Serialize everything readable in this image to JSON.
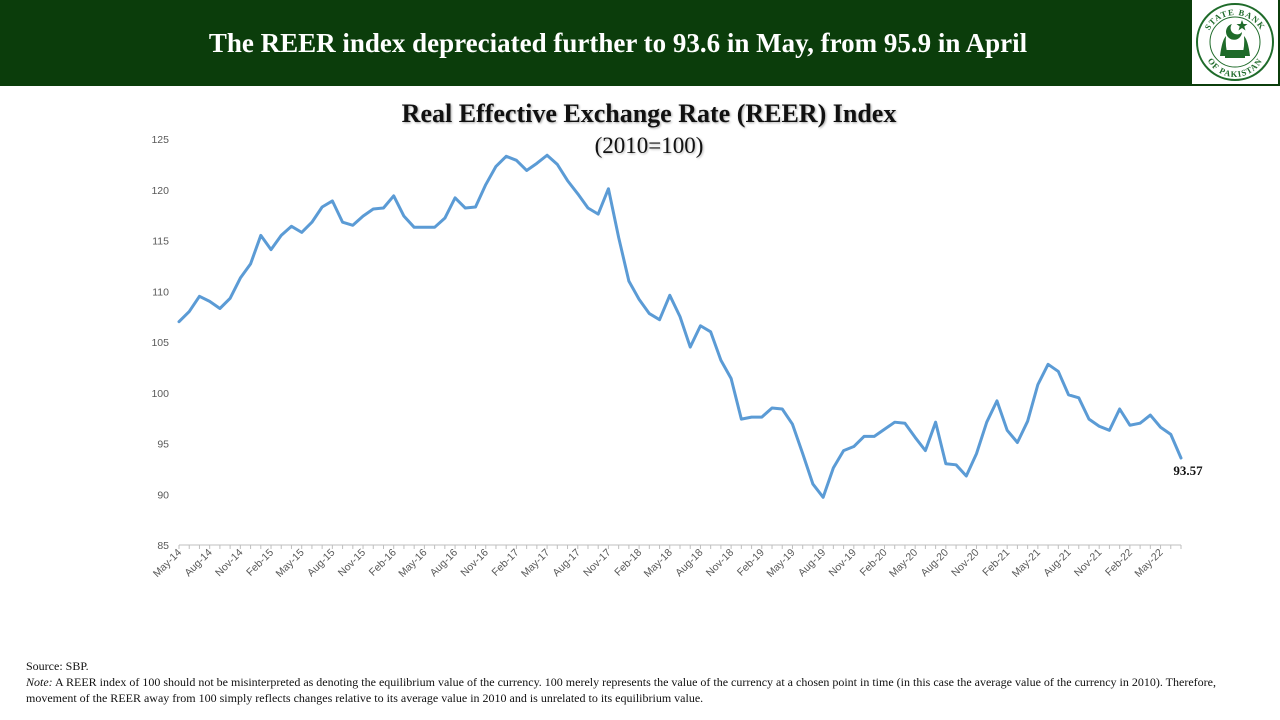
{
  "banner": {
    "title": "The REER index depreciated further to 93.6 in May, from 95.9 in April",
    "logo_text_top": "STATE BANK",
    "logo_text_bottom": "OF PAKISTAN"
  },
  "colors": {
    "banner": "#0b3d0b",
    "line": "#5b9bd5",
    "axis": "#bfbfbf",
    "axis_text": "#595959"
  },
  "footer": {
    "source": "Source: SBP.",
    "note_label": "Note:",
    "note_text": " A REER index of 100 should not be misinterpreted  as denoting  the equilibrium value of the currency.  100 merely represents  the value of the currency  at a chosen point in time  (in this case the  average value of the currency  in 2010). Therefore,  movement of the REER away from 100 simply reflects changes relative to its average  value in 2010  and is unrelated  to its equilibrium value."
  },
  "chart_data": {
    "type": "line",
    "title": "Real Effective Exchange Rate (REER) Index",
    "subtitle": "(2010=100)",
    "xlabel": "",
    "ylabel": "",
    "ylim": [
      85,
      125
    ],
    "yticks": [
      85,
      90,
      95,
      100,
      105,
      110,
      115,
      120,
      125
    ],
    "grid": false,
    "x_tick_labels": [
      "May-14",
      "Aug-14",
      "Nov-14",
      "Feb-15",
      "May-15",
      "Aug-15",
      "Nov-15",
      "Feb-16",
      "May-16",
      "Aug-16",
      "Nov-16",
      "Feb-17",
      "May-17",
      "Aug-17",
      "Nov-17",
      "Feb-18",
      "May-18",
      "Aug-18",
      "Nov-18",
      "Feb-19",
      "May-19",
      "Aug-19",
      "Nov-19",
      "Feb-20",
      "May-20",
      "Aug-20",
      "Nov-20",
      "Feb-21",
      "May-21",
      "Aug-21",
      "Nov-21",
      "Feb-22",
      "May-22"
    ],
    "end_label": "93.57",
    "series": [
      {
        "start": "May-14",
        "frequency": "monthly",
        "values": [
          107.0,
          108.0,
          109.5,
          109.0,
          108.3,
          109.3,
          111.3,
          112.7,
          115.5,
          114.1,
          115.5,
          116.4,
          115.8,
          116.8,
          118.3,
          118.9,
          116.8,
          116.5,
          117.4,
          118.1,
          118.2,
          119.4,
          117.4,
          116.3,
          116.3,
          116.3,
          117.2,
          119.2,
          118.2,
          118.3,
          120.5,
          122.3,
          123.3,
          122.9,
          121.9,
          122.6,
          123.4,
          122.5,
          120.9,
          119.6,
          118.2,
          117.6,
          120.1,
          115.3,
          111.0,
          109.2,
          107.8,
          107.2,
          109.6,
          107.5,
          104.5,
          106.6,
          106.0,
          103.2,
          101.4,
          97.4,
          97.6,
          97.6,
          98.5,
          98.4,
          96.9,
          94.0,
          91.0,
          89.7,
          92.6,
          94.3,
          94.7,
          95.7,
          95.7,
          96.4,
          97.1,
          97.0,
          95.6,
          94.3,
          97.1,
          93.0,
          92.9,
          91.8,
          94.0,
          97.1,
          99.2,
          96.3,
          95.1,
          97.2,
          100.8,
          102.8,
          102.1,
          99.8,
          99.5,
          97.4,
          96.7,
          96.3,
          98.4,
          96.8,
          97.0,
          97.8,
          96.6,
          95.9,
          93.57
        ]
      }
    ]
  }
}
